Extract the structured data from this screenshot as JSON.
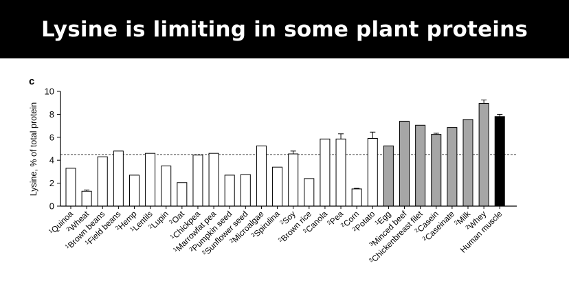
{
  "banner": {
    "title": "Lysine is limiting in some plant proteins"
  },
  "chart_data": {
    "type": "bar",
    "panel_label": "c",
    "ylabel": "Lysine, % of total protein",
    "ylim": [
      0,
      10
    ],
    "yticks": [
      0,
      2,
      4,
      6,
      8,
      10
    ],
    "reference_line": 4.5,
    "categories": [
      {
        "sup": "1",
        "name": "Quinoa",
        "value": 3.3,
        "err": 0,
        "group": "plant"
      },
      {
        "sup": "2",
        "name": "Wheat",
        "value": 1.3,
        "err": 0.1,
        "group": "plant"
      },
      {
        "sup": "1",
        "name": "Brown beans",
        "value": 4.3,
        "err": 0,
        "group": "plant"
      },
      {
        "sup": "1",
        "name": "Field beans",
        "value": 4.8,
        "err": 0,
        "group": "plant"
      },
      {
        "sup": "2",
        "name": "Hemp",
        "value": 2.7,
        "err": 0,
        "group": "plant"
      },
      {
        "sup": "1",
        "name": "Lentils",
        "value": 4.6,
        "err": 0,
        "group": "plant"
      },
      {
        "sup": "2",
        "name": "Lupin",
        "value": 3.5,
        "err": 0,
        "group": "plant"
      },
      {
        "sup": "2",
        "name": "Oat",
        "value": 2.05,
        "err": 0,
        "group": "plant"
      },
      {
        "sup": "1",
        "name": "Chickpea",
        "value": 4.45,
        "err": 0,
        "group": "plant"
      },
      {
        "sup": "1",
        "name": "Marrowfat pea",
        "value": 4.6,
        "err": 0,
        "group": "plant"
      },
      {
        "sup": "2",
        "name": "Pumpkin seed",
        "value": 2.7,
        "err": 0,
        "group": "plant"
      },
      {
        "sup": "2",
        "name": "Sunflower seed",
        "value": 2.75,
        "err": 0,
        "group": "plant"
      },
      {
        "sup": "2",
        "name": "Microalgae",
        "value": 5.25,
        "err": 0,
        "group": "plant"
      },
      {
        "sup": "2",
        "name": "Spirulina",
        "value": 3.4,
        "err": 0,
        "group": "plant"
      },
      {
        "sup": "2",
        "name": "Soy",
        "value": 4.55,
        "err": 0.25,
        "group": "plant"
      },
      {
        "sup": "2",
        "name": "Brown rice",
        "value": 2.4,
        "err": 0,
        "group": "plant"
      },
      {
        "sup": "2",
        "name": "Canola",
        "value": 5.85,
        "err": 0,
        "group": "plant"
      },
      {
        "sup": "2",
        "name": "Pea",
        "value": 5.85,
        "err": 0.45,
        "group": "plant"
      },
      {
        "sup": "2",
        "name": "Corn",
        "value": 1.5,
        "err": 0.05,
        "group": "plant"
      },
      {
        "sup": "2",
        "name": "Potato",
        "value": 5.9,
        "err": 0.55,
        "group": "plant"
      },
      {
        "sup": "1",
        "name": "Egg",
        "value": 5.25,
        "err": 0,
        "group": "animal"
      },
      {
        "sup": "3",
        "name": "Minced beef",
        "value": 7.4,
        "err": 0,
        "group": "animal"
      },
      {
        "sup": "3",
        "name": "Chickenbreast filet",
        "value": 7.05,
        "err": 0,
        "group": "animal"
      },
      {
        "sup": "2",
        "name": "Casein",
        "value": 6.25,
        "err": 0.1,
        "group": "animal"
      },
      {
        "sup": "2",
        "name": "Caseinate",
        "value": 6.85,
        "err": 0,
        "group": "animal"
      },
      {
        "sup": "2",
        "name": "Milk",
        "value": 7.55,
        "err": 0,
        "group": "animal"
      },
      {
        "sup": "2",
        "name": "Whey",
        "value": 8.95,
        "err": 0.3,
        "group": "animal"
      },
      {
        "sup": "",
        "name": "Human muscle",
        "value": 7.8,
        "err": 0.2,
        "group": "human"
      }
    ],
    "colors": {
      "plant": "#ffffff",
      "animal": "#a6a6a6",
      "human": "#000000"
    }
  }
}
